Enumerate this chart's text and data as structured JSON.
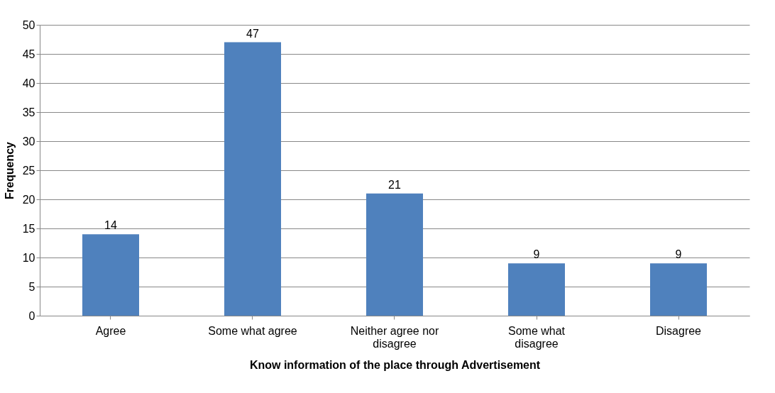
{
  "chart_data": {
    "type": "bar",
    "xlabel": "Know information of the place through Advertisement",
    "ylabel": "Frequency",
    "categories": [
      "Agree",
      "Some what agree",
      "Neither agree nor disagree",
      "Some what disagree",
      "Disagree"
    ],
    "values": [
      14,
      47,
      21,
      9,
      9
    ],
    "color": "#4f81bd",
    "ylim": [
      0,
      50
    ],
    "yticks": [
      0,
      5,
      10,
      15,
      20,
      25,
      30,
      35,
      40,
      45,
      50
    ],
    "grid": "y",
    "data_labels": true
  }
}
